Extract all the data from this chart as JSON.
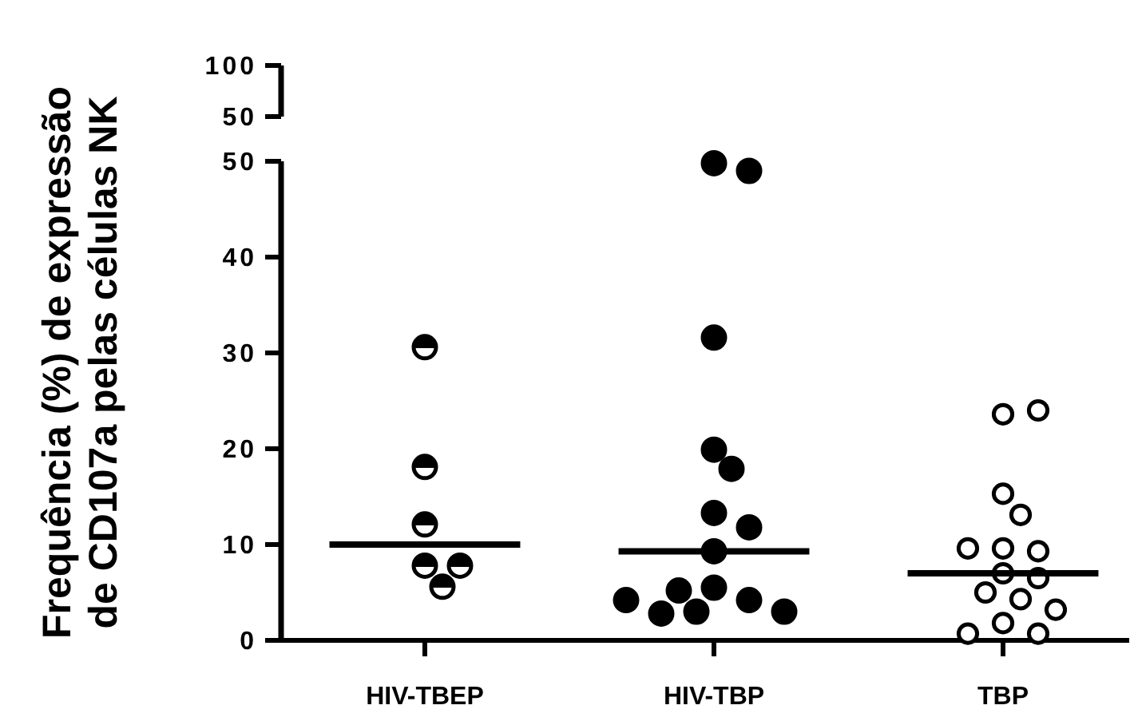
{
  "chart_data": [
    {
      "type": "other",
      "annotations": [
        "100",
        "50"
      ]
    },
    {
      "type": "scatter",
      "ylabel": "Frequência (%) de expressão\nde CD107a pelas células NK",
      "categories": [
        "HIV-TBEP",
        "HIV-TBP",
        "TBP"
      ],
      "ylim": [
        0,
        50
      ],
      "yticks": [
        0,
        10,
        20,
        30,
        40,
        50
      ],
      "marker": "circle",
      "series": [
        {
          "type": "scatter",
          "color": "#000000",
          "x": [
            "HIV-TBEP",
            "HIV-TBEP",
            "HIV-TBEP",
            "HIV-TBEP",
            "HIV-TBEP",
            "HIV-TBEP"
          ],
          "values": [
            30.6,
            18.1,
            12.1,
            7.8,
            7.8,
            5.6
          ]
        },
        {
          "type": "scatter",
          "color": "#000000",
          "x": [
            "HIV-TBP",
            "HIV-TBP",
            "HIV-TBP",
            "HIV-TBP",
            "HIV-TBP",
            "HIV-TBP",
            "HIV-TBP",
            "HIV-TBP",
            "HIV-TBP",
            "HIV-TBP",
            "HIV-TBP",
            "HIV-TBP",
            "HIV-TBP",
            "HIV-TBP",
            "HIV-TBP"
          ],
          "values": [
            49.8,
            49.0,
            31.6,
            19.9,
            17.9,
            13.3,
            11.8,
            9.3,
            5.5,
            4.2,
            3.0,
            2.8,
            3.0,
            4.2,
            5.2
          ]
        },
        {
          "type": "scatter",
          "color": "#000000",
          "x": [
            "TBP",
            "TBP",
            "TBP",
            "TBP",
            "TBP",
            "TBP",
            "TBP",
            "TBP",
            "TBP",
            "TBP",
            "TBP",
            "TBP",
            "TBP",
            "TBP",
            "TBP"
          ],
          "values": [
            23.6,
            24.0,
            15.3,
            13.1,
            9.6,
            9.3,
            9.6,
            7.0,
            6.5,
            5.0,
            4.3,
            3.2,
            1.8,
            0.7,
            0.7
          ]
        }
      ],
      "ref_lines": [
        {
          "axis": "y",
          "value": 10.0,
          "color": "#000000"
        },
        {
          "axis": "y",
          "value": 9.3,
          "color": "#000000"
        },
        {
          "axis": "y",
          "value": 7.0,
          "color": "#000000"
        }
      ]
    }
  ]
}
